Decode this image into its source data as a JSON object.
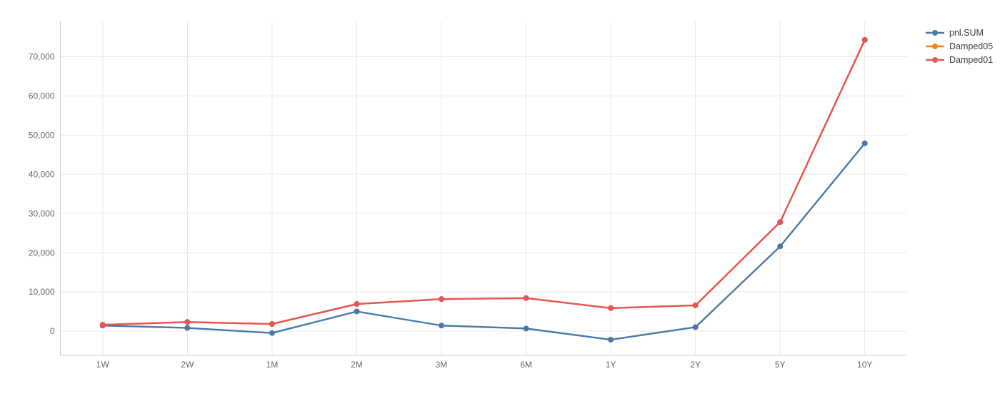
{
  "chart_data": {
    "type": "line",
    "mode": "lines+markers",
    "title": "",
    "xlabel": "",
    "ylabel": "",
    "grid": true,
    "legend_position": "top-right",
    "categories": [
      "1W",
      "2W",
      "1M",
      "2M",
      "3M",
      "6M",
      "1Y",
      "2Y",
      "5Y",
      "10Y"
    ],
    "series": [
      {
        "name": "pnl.SUM",
        "color": "#4c78a8",
        "values": [
          1400,
          800,
          -500,
          5000,
          1400,
          650,
          -2200,
          1000,
          21600,
          47900
        ]
      },
      {
        "name": "Damped05",
        "color": "#f58518",
        "values": [
          1600,
          2300,
          1800,
          6900,
          8150,
          8400,
          5850,
          6550,
          27800,
          74300
        ]
      },
      {
        "name": "Damped01",
        "color": "#e45756",
        "values": [
          1600,
          2300,
          1800,
          6900,
          8150,
          8400,
          5850,
          6550,
          27800,
          74300
        ]
      }
    ],
    "yticks": [
      {
        "value": 0,
        "label": "0"
      },
      {
        "value": 10000,
        "label": "10,000"
      },
      {
        "value": 20000,
        "label": "20,000"
      },
      {
        "value": 30000,
        "label": "30,000"
      },
      {
        "value": 40000,
        "label": "40,000"
      },
      {
        "value": 50000,
        "label": "50,000"
      },
      {
        "value": 60000,
        "label": "60,000"
      },
      {
        "value": 70000,
        "label": "70,000"
      }
    ],
    "ylim": [
      -6200,
      79000
    ]
  },
  "colors": {
    "background": "#ffffff",
    "gridline": "#e8e8e8",
    "axis_line": "#cccccc",
    "tick_label": "#666666",
    "legend_text": "#3d3d3d"
  }
}
